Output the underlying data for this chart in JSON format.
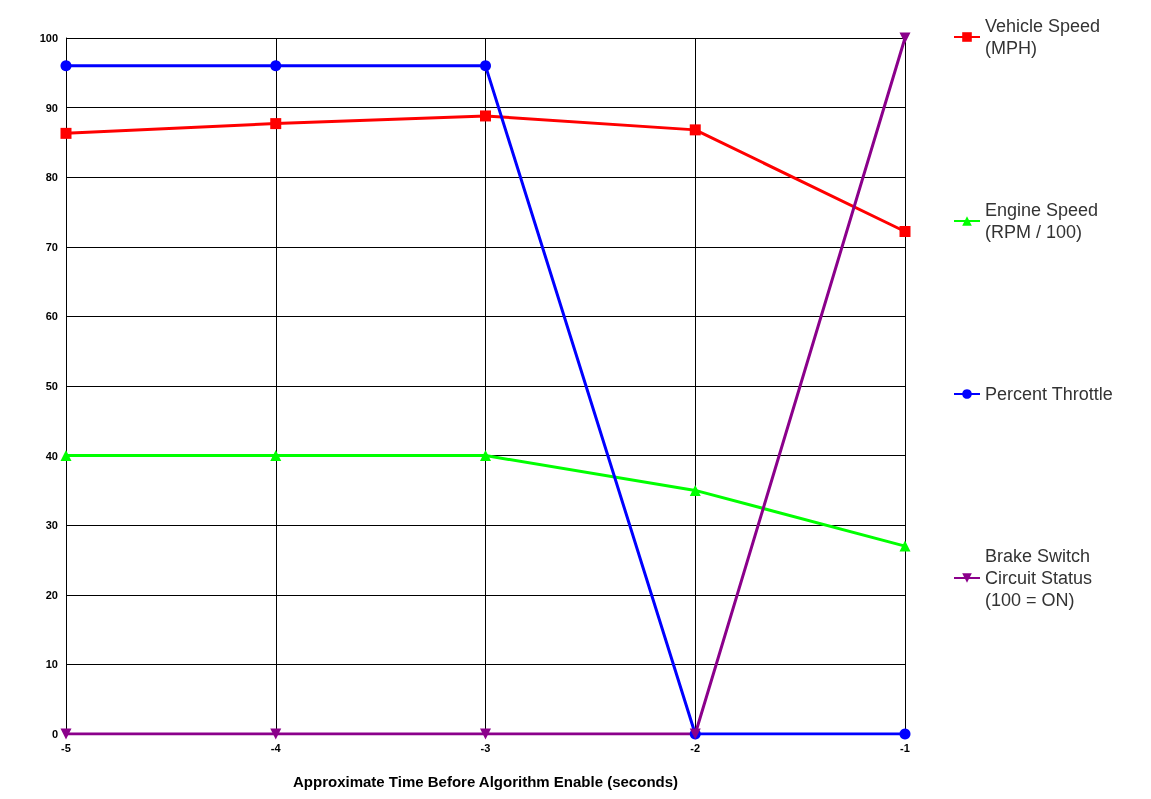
{
  "chart_data": {
    "type": "line",
    "xlabel": "Approximate Time Before Algorithm Enable (seconds)",
    "x": [
      -5,
      -4,
      -3,
      -2,
      -1
    ],
    "xlim": [
      -5,
      -1
    ],
    "xticks": [
      -5,
      -4,
      -3,
      -2,
      -1
    ],
    "ylim": [
      0,
      100
    ],
    "yticks": [
      0,
      10,
      20,
      30,
      40,
      50,
      60,
      70,
      80,
      90,
      100
    ],
    "grid": true,
    "legend": "right",
    "line_style": "solid",
    "series": [
      {
        "name": "Vehicle Speed (MPH)",
        "color": "#ff0000",
        "marker": "square",
        "values": [
          86.3,
          87.7,
          88.8,
          86.8,
          72.2
        ]
      },
      {
        "name": "Engine Speed (RPM / 100)",
        "color": "#00ff00",
        "marker": "triangle",
        "values": [
          40,
          40,
          40,
          35,
          27
        ]
      },
      {
        "name": "Percent Throttle",
        "color": "#0000ff",
        "marker": "circle",
        "values": [
          96,
          96,
          96,
          0,
          0
        ]
      },
      {
        "name": "Brake Switch Circuit Status (100 = ON)",
        "color": "#8b008b",
        "marker": "triangle-down",
        "values": [
          0,
          0,
          0,
          0,
          100
        ]
      }
    ]
  }
}
